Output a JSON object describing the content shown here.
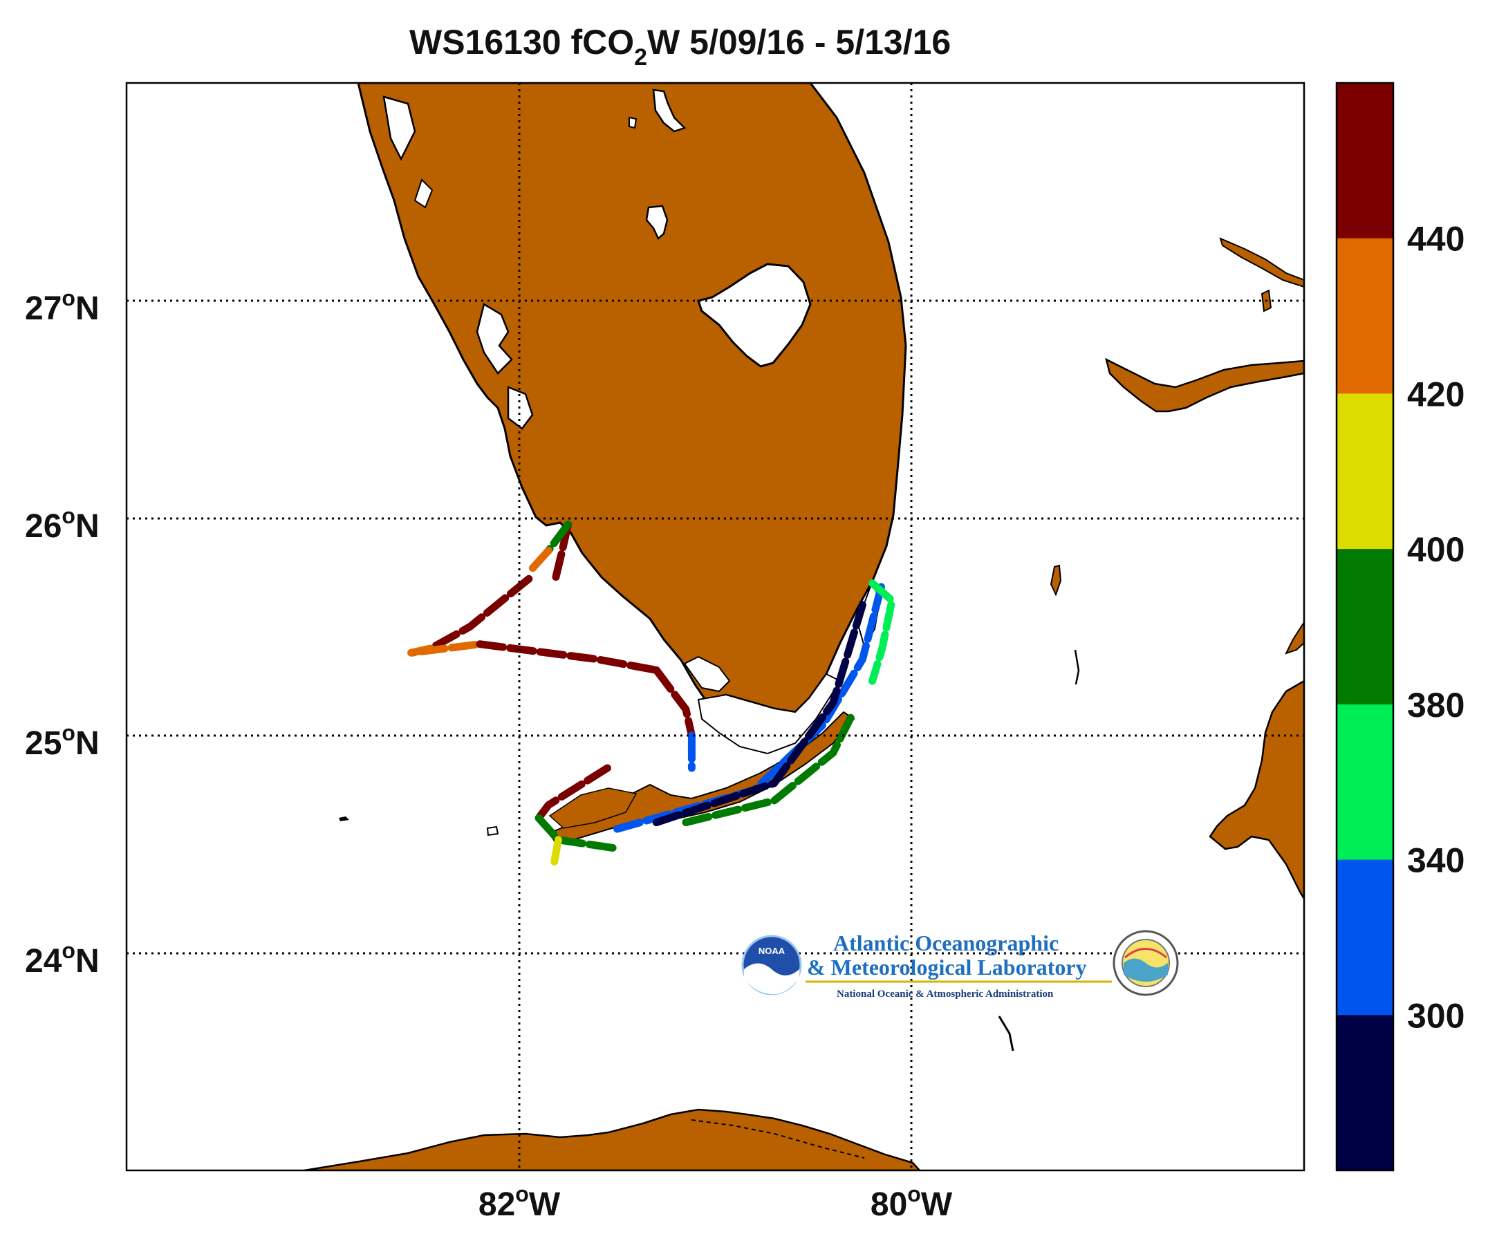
{
  "title": {
    "part1": "WS16130  fCO",
    "subscript": "2",
    "part2": "W 5/09/16 - 5/13/16"
  },
  "axes": {
    "lon_ticks": [
      {
        "deg": "82",
        "hemi": "W",
        "value": -82
      },
      {
        "deg": "80",
        "hemi": "W",
        "value": -80
      }
    ],
    "lat_ticks": [
      {
        "deg": "27",
        "hemi": "N",
        "value": 27
      },
      {
        "deg": "26",
        "hemi": "N",
        "value": 26
      },
      {
        "deg": "25",
        "hemi": "N",
        "value": 25
      },
      {
        "deg": "24",
        "hemi": "N",
        "value": 24
      }
    ],
    "degree_symbol": "o",
    "lon_range": [
      -84,
      -78
    ],
    "lat_range": [
      23,
      28
    ]
  },
  "colorbar": {
    "labels": [
      "440",
      "420",
      "400",
      "380",
      "340",
      "300"
    ],
    "bands_top_to_bottom": [
      "#7a0000",
      "#e06a00",
      "#dcdc00",
      "#007a00",
      "#00ee55",
      "#0055ee",
      "#000044"
    ],
    "boundaries": [
      440,
      420,
      400,
      380,
      340,
      300
    ]
  },
  "colors": {
    "land": "#b96000",
    "coast": "#000000",
    "water": "#ffffff",
    "grid": "#000000"
  },
  "logo": {
    "line1": "Atlantic Oceanographic",
    "line2": "& Meteorological Laboratory",
    "line3": "National Oceanic & Atmospheric Administration",
    "badge_text": "NOAA"
  },
  "chart_data": {
    "type": "map",
    "title": "WS16130 fCO2W 5/09/16 - 5/13/16",
    "xlabel": "",
    "ylabel": "",
    "grid": true,
    "legend": "colorbar-right",
    "track_segments": [
      {
        "value": 450,
        "points": [
          [
            -81.75,
            25.97
          ],
          [
            -81.78,
            25.85
          ],
          [
            -81.82,
            25.7
          ]
        ]
      },
      {
        "value": 385,
        "points": [
          [
            -81.75,
            25.97
          ],
          [
            -81.85,
            25.85
          ]
        ]
      },
      {
        "value": 430,
        "points": [
          [
            -81.85,
            25.85
          ],
          [
            -81.95,
            25.75
          ]
        ]
      },
      {
        "value": 450,
        "points": [
          [
            -81.95,
            25.72
          ],
          [
            -82.25,
            25.5
          ],
          [
            -82.45,
            25.4
          ]
        ]
      },
      {
        "value": 430,
        "points": [
          [
            -82.45,
            25.4
          ],
          [
            -82.55,
            25.38
          ],
          [
            -82.2,
            25.42
          ]
        ]
      },
      {
        "value": 450,
        "points": [
          [
            -82.2,
            25.42
          ],
          [
            -81.6,
            25.35
          ],
          [
            -81.3,
            25.3
          ]
        ]
      },
      {
        "value": 450,
        "points": [
          [
            -81.3,
            25.3
          ],
          [
            -81.2,
            25.18
          ],
          [
            -81.15,
            25.12
          ],
          [
            -81.12,
            25.0
          ]
        ]
      },
      {
        "value": 300,
        "points": [
          [
            -81.12,
            25.0
          ],
          [
            -81.12,
            24.85
          ]
        ]
      },
      {
        "value": 450,
        "points": [
          [
            -81.55,
            24.85
          ],
          [
            -81.85,
            24.68
          ],
          [
            -81.9,
            24.62
          ]
        ]
      },
      {
        "value": 390,
        "points": [
          [
            -81.9,
            24.62
          ],
          [
            -81.8,
            24.52
          ],
          [
            -81.5,
            24.48
          ]
        ]
      },
      {
        "value": 410,
        "points": [
          [
            -81.8,
            24.52
          ],
          [
            -81.82,
            24.42
          ]
        ]
      },
      {
        "value": 330,
        "points": [
          [
            -81.5,
            24.57
          ],
          [
            -80.8,
            24.75
          ],
          [
            -80.45,
            25.05
          ],
          [
            -80.25,
            25.35
          ],
          [
            -80.15,
            25.7
          ]
        ]
      },
      {
        "value": 290,
        "points": [
          [
            -81.3,
            24.6
          ],
          [
            -80.7,
            24.78
          ],
          [
            -80.4,
            25.15
          ],
          [
            -80.25,
            25.6
          ]
        ]
      },
      {
        "value": 385,
        "points": [
          [
            -81.15,
            24.6
          ],
          [
            -80.7,
            24.7
          ],
          [
            -80.4,
            24.92
          ],
          [
            -80.3,
            25.1
          ]
        ]
      },
      {
        "value": 370,
        "points": [
          [
            -80.2,
            25.7
          ],
          [
            -80.1,
            25.62
          ],
          [
            -80.15,
            25.4
          ],
          [
            -80.2,
            25.25
          ]
        ]
      }
    ]
  }
}
